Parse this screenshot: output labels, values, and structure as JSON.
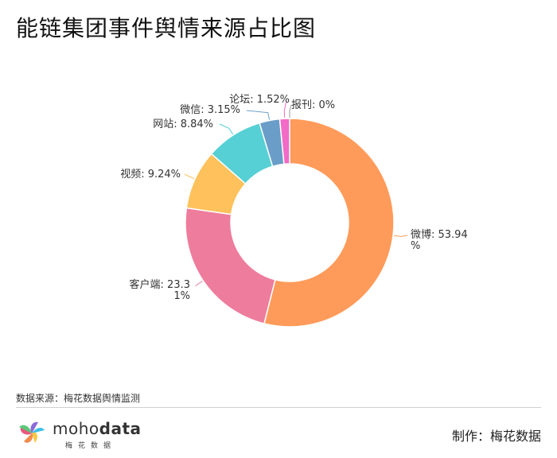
{
  "title": "能链集团事件舆情来源占比图",
  "source": "数据来源：梅花数据舆情监测",
  "maker": "制作：梅花数据",
  "brand": {
    "name_light": "moho",
    "name_bold": "data",
    "subtitle": "梅花数据"
  },
  "chart_data": {
    "type": "pie",
    "variant": "donut",
    "title": "能链集团事件舆情来源占比图",
    "slices": [
      {
        "label": "微博",
        "value": 53.94,
        "display": "微博: 53.94%",
        "color": "#FF9B5A"
      },
      {
        "label": "客户端",
        "value": 23.31,
        "display": "客户端: 23.31%",
        "color": "#EE7C9C"
      },
      {
        "label": "视频",
        "value": 9.24,
        "display": "视频: 9.24%",
        "color": "#FEC15B"
      },
      {
        "label": "网站",
        "value": 8.84,
        "display": "网站: 8.84%",
        "color": "#56CFD5"
      },
      {
        "label": "微信",
        "value": 3.15,
        "display": "微信: 3.15%",
        "color": "#6A9EC8"
      },
      {
        "label": "论坛",
        "value": 1.52,
        "display": "论坛: 1.52%",
        "color": "#F26BC6"
      },
      {
        "label": "报刊",
        "value": 0,
        "display": "报刊: 0%",
        "color": "#B0B0B0"
      }
    ]
  }
}
